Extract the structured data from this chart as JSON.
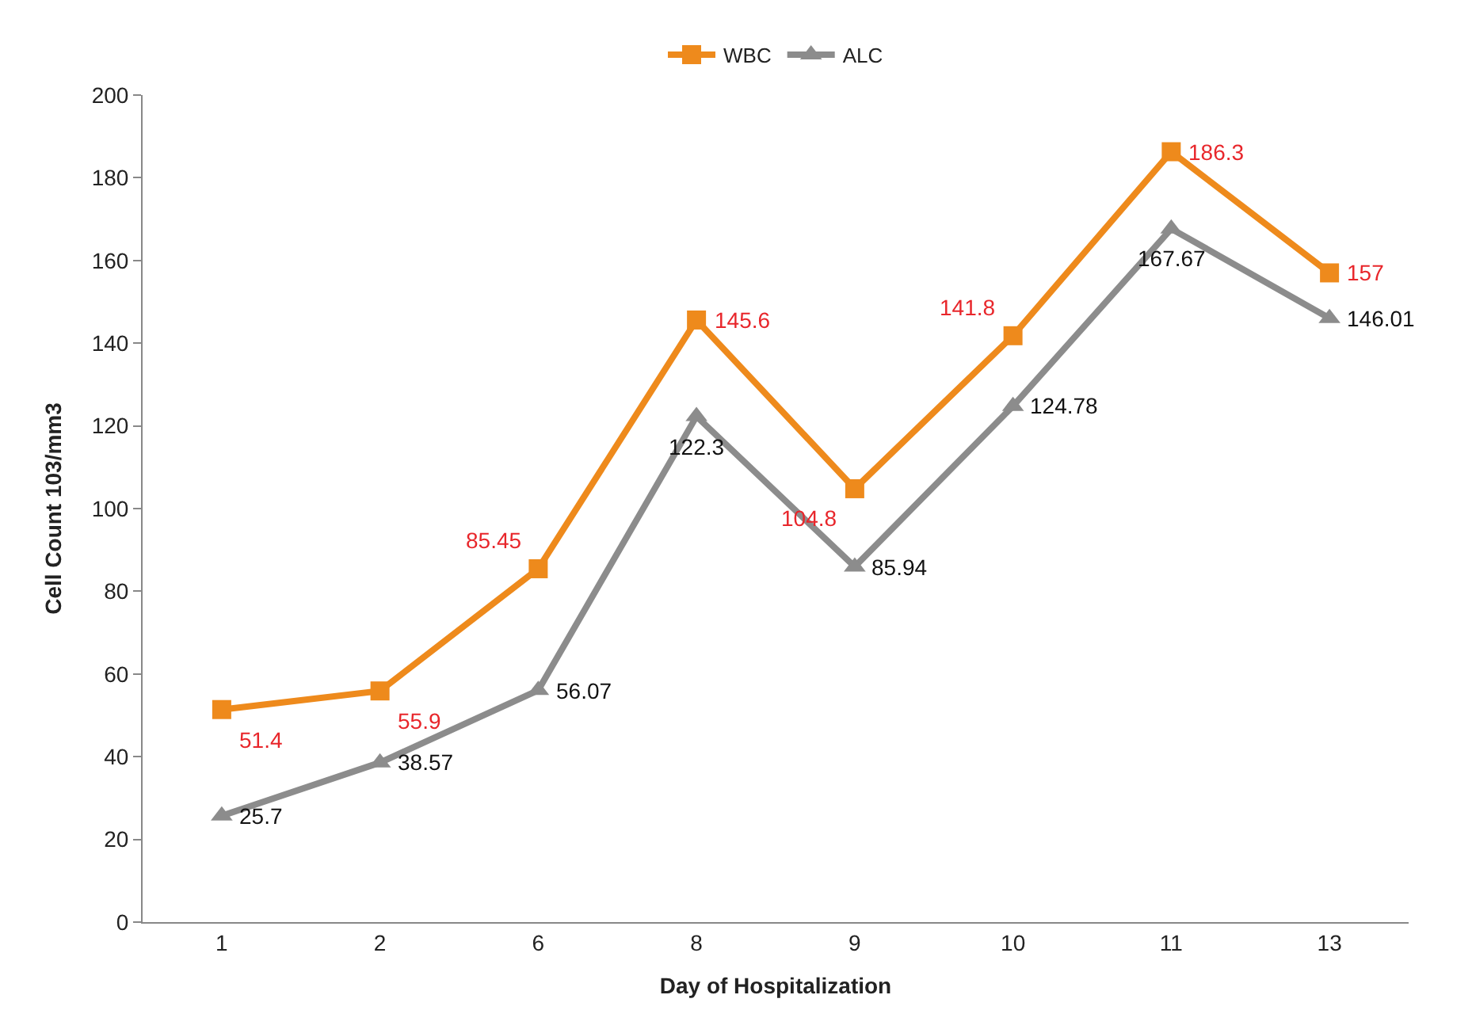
{
  "chart_data": {
    "type": "line",
    "xlabel": "Day of Hospitalization",
    "ylabel": "Cell Count 103/mm3",
    "categories": [
      "1",
      "2",
      "6",
      "8",
      "9",
      "10",
      "11",
      "13"
    ],
    "series": [
      {
        "name": "WBC",
        "color": "#ee8a1c",
        "marker": "square",
        "values": [
          51.4,
          55.9,
          85.45,
          145.6,
          104.8,
          141.8,
          186.3,
          157
        ]
      },
      {
        "name": "ALC",
        "color": "#8c8c8c",
        "marker": "triangle",
        "values": [
          25.7,
          38.57,
          56.07,
          122.3,
          85.94,
          124.78,
          167.67,
          146.01
        ]
      }
    ],
    "ylim": [
      0,
      200
    ],
    "yticks": [
      0,
      20,
      40,
      60,
      80,
      100,
      120,
      140,
      160,
      180,
      200
    ],
    "data_labels": true,
    "legend": "top",
    "line_style": "solid"
  }
}
